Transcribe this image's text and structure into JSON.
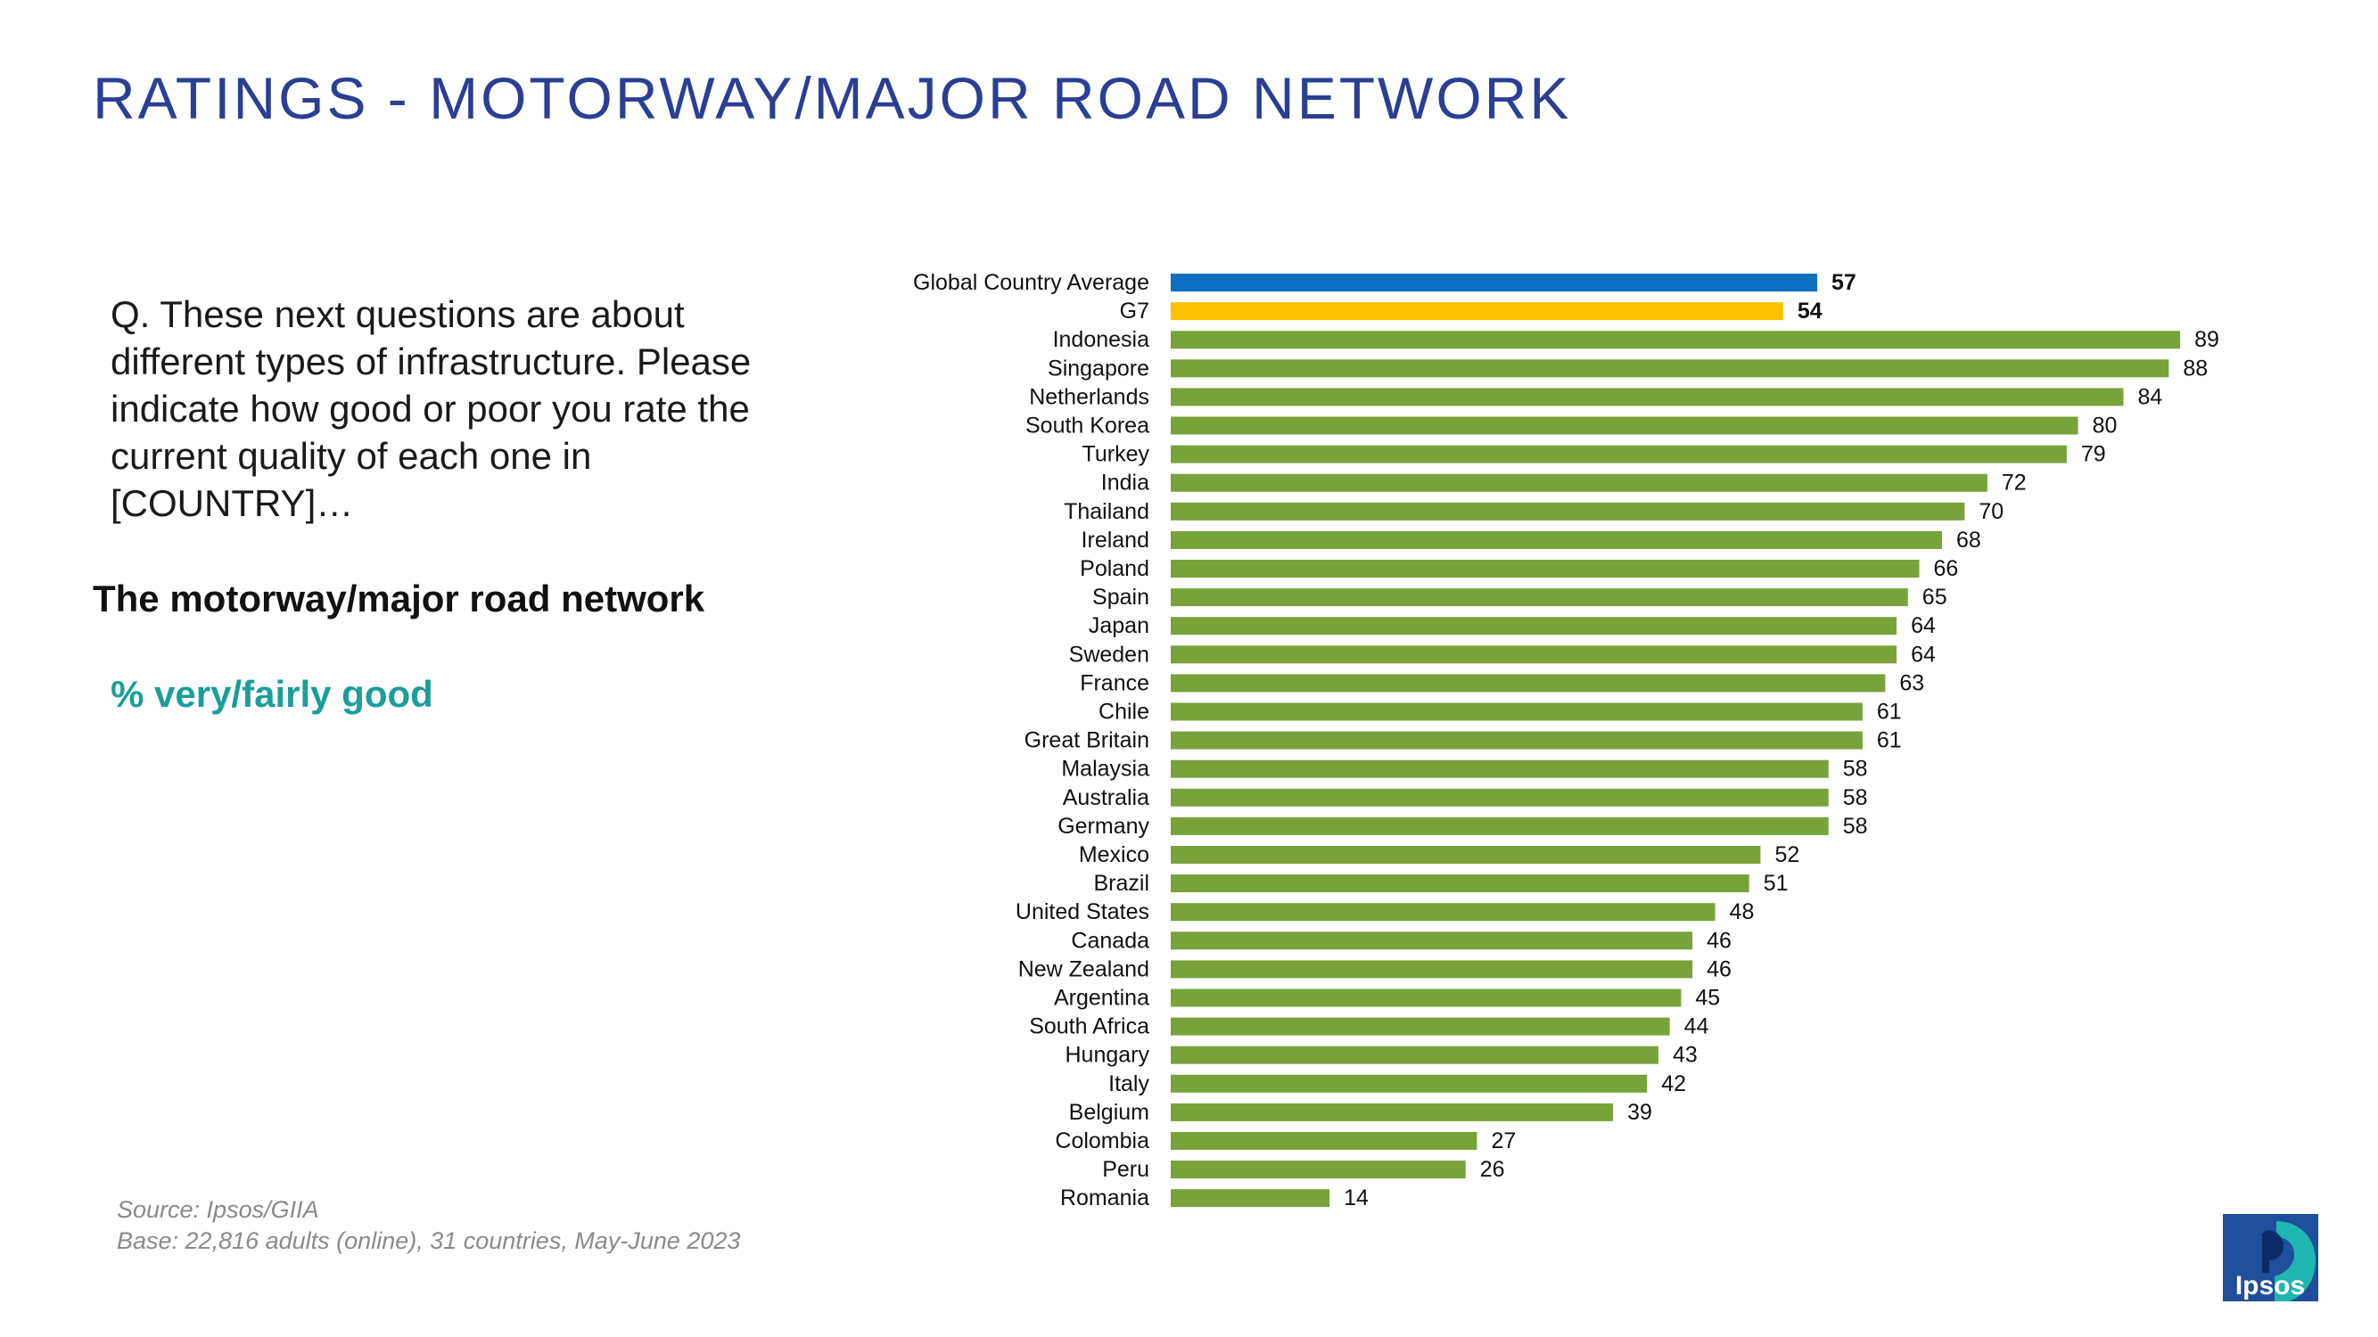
{
  "title": "RATINGS - MOTORWAY/MAJOR ROAD NETWORK",
  "question": "Q. These next questions are about different types of infrastructure. Please indicate how good or poor you rate the current quality of each one in [COUNTRY]…",
  "subject": "The motorway/major road network",
  "metric": "% very/fairly good",
  "source": "Source: Ipsos/GIIA",
  "base": "Base: 22,816 adults (online), 31 countries, May-June 2023",
  "logo_text": "Ipsos",
  "colors": {
    "title": "#2a3f94",
    "global_average": "#0e6fc1",
    "g7": "#ffc000",
    "country": "#77a33a",
    "metric_text": "#1a9e9a",
    "logo_bg": "#1f4e9a",
    "logo_accent": "#1fb5b0"
  },
  "chart_data": {
    "type": "bar",
    "orientation": "horizontal",
    "xlim": [
      0,
      100
    ],
    "grid": false,
    "categories": [
      "Global Country Average",
      "G7",
      "Indonesia",
      "Singapore",
      "Netherlands",
      "South Korea",
      "Turkey",
      "India",
      "Thailand",
      "Ireland",
      "Poland",
      "Spain",
      "Japan",
      "Sweden",
      "France",
      "Chile",
      "Great Britain",
      "Malaysia",
      "Australia",
      "Germany",
      "Mexico",
      "Brazil",
      "United States",
      "Canada",
      "New Zealand",
      "Argentina",
      "South Africa",
      "Hungary",
      "Italy",
      "Belgium",
      "Colombia",
      "Peru",
      "Romania"
    ],
    "values": [
      57,
      54,
      89,
      88,
      84,
      80,
      79,
      72,
      70,
      68,
      66,
      65,
      64,
      64,
      63,
      61,
      61,
      58,
      58,
      58,
      52,
      51,
      48,
      46,
      46,
      45,
      44,
      43,
      42,
      39,
      27,
      26,
      14
    ],
    "highlight": {
      "Global Country Average": "global_average",
      "G7": "g7"
    },
    "bold_labels": [
      "Global Country Average",
      "G7"
    ]
  }
}
